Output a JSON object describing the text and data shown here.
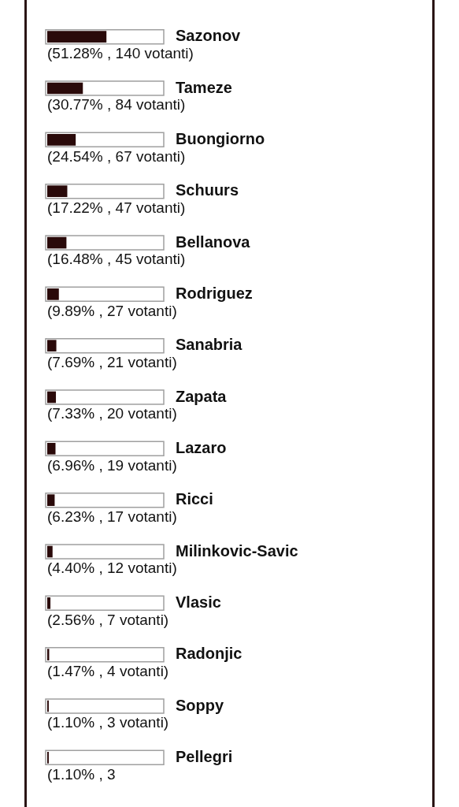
{
  "chart_data": {
    "type": "bar",
    "orientation": "horizontal",
    "categories": [
      "Sazonov",
      "Tameze",
      "Buongiorno",
      "Schuurs",
      "Bellanova",
      "Rodriguez",
      "Sanabria",
      "Zapata",
      "Lazaro",
      "Ricci",
      "Milinkovic-Savic",
      "Vlasic",
      "Radonjic",
      "Soppy",
      "Pellegri"
    ],
    "values": [
      51.28,
      30.77,
      24.54,
      17.22,
      16.48,
      9.89,
      7.69,
      7.33,
      6.96,
      6.23,
      4.4,
      2.56,
      1.47,
      1.1,
      1.1
    ],
    "value_labels": [
      "(51.28% , 140 votanti)",
      "(30.77% , 84 votanti)",
      "(24.54% , 67 votanti)",
      "(17.22% , 47 votanti)",
      "(16.48% , 45 votanti)",
      "(9.89% , 27 votanti)",
      "(7.69% , 21 votanti)",
      "(7.33% , 20 votanti)",
      "(6.96% , 19 votanti)",
      "(6.23% , 17 votanti)",
      "(4.40% , 12 votanti)",
      "(2.56% , 7 votanti)",
      "(1.47% , 4 votanti)",
      "(1.10% , 3 votanti)",
      "(1.10% , 3"
    ],
    "color": "#2a0a0a",
    "xlim": [
      0,
      100
    ],
    "tick_labels": "y"
  }
}
